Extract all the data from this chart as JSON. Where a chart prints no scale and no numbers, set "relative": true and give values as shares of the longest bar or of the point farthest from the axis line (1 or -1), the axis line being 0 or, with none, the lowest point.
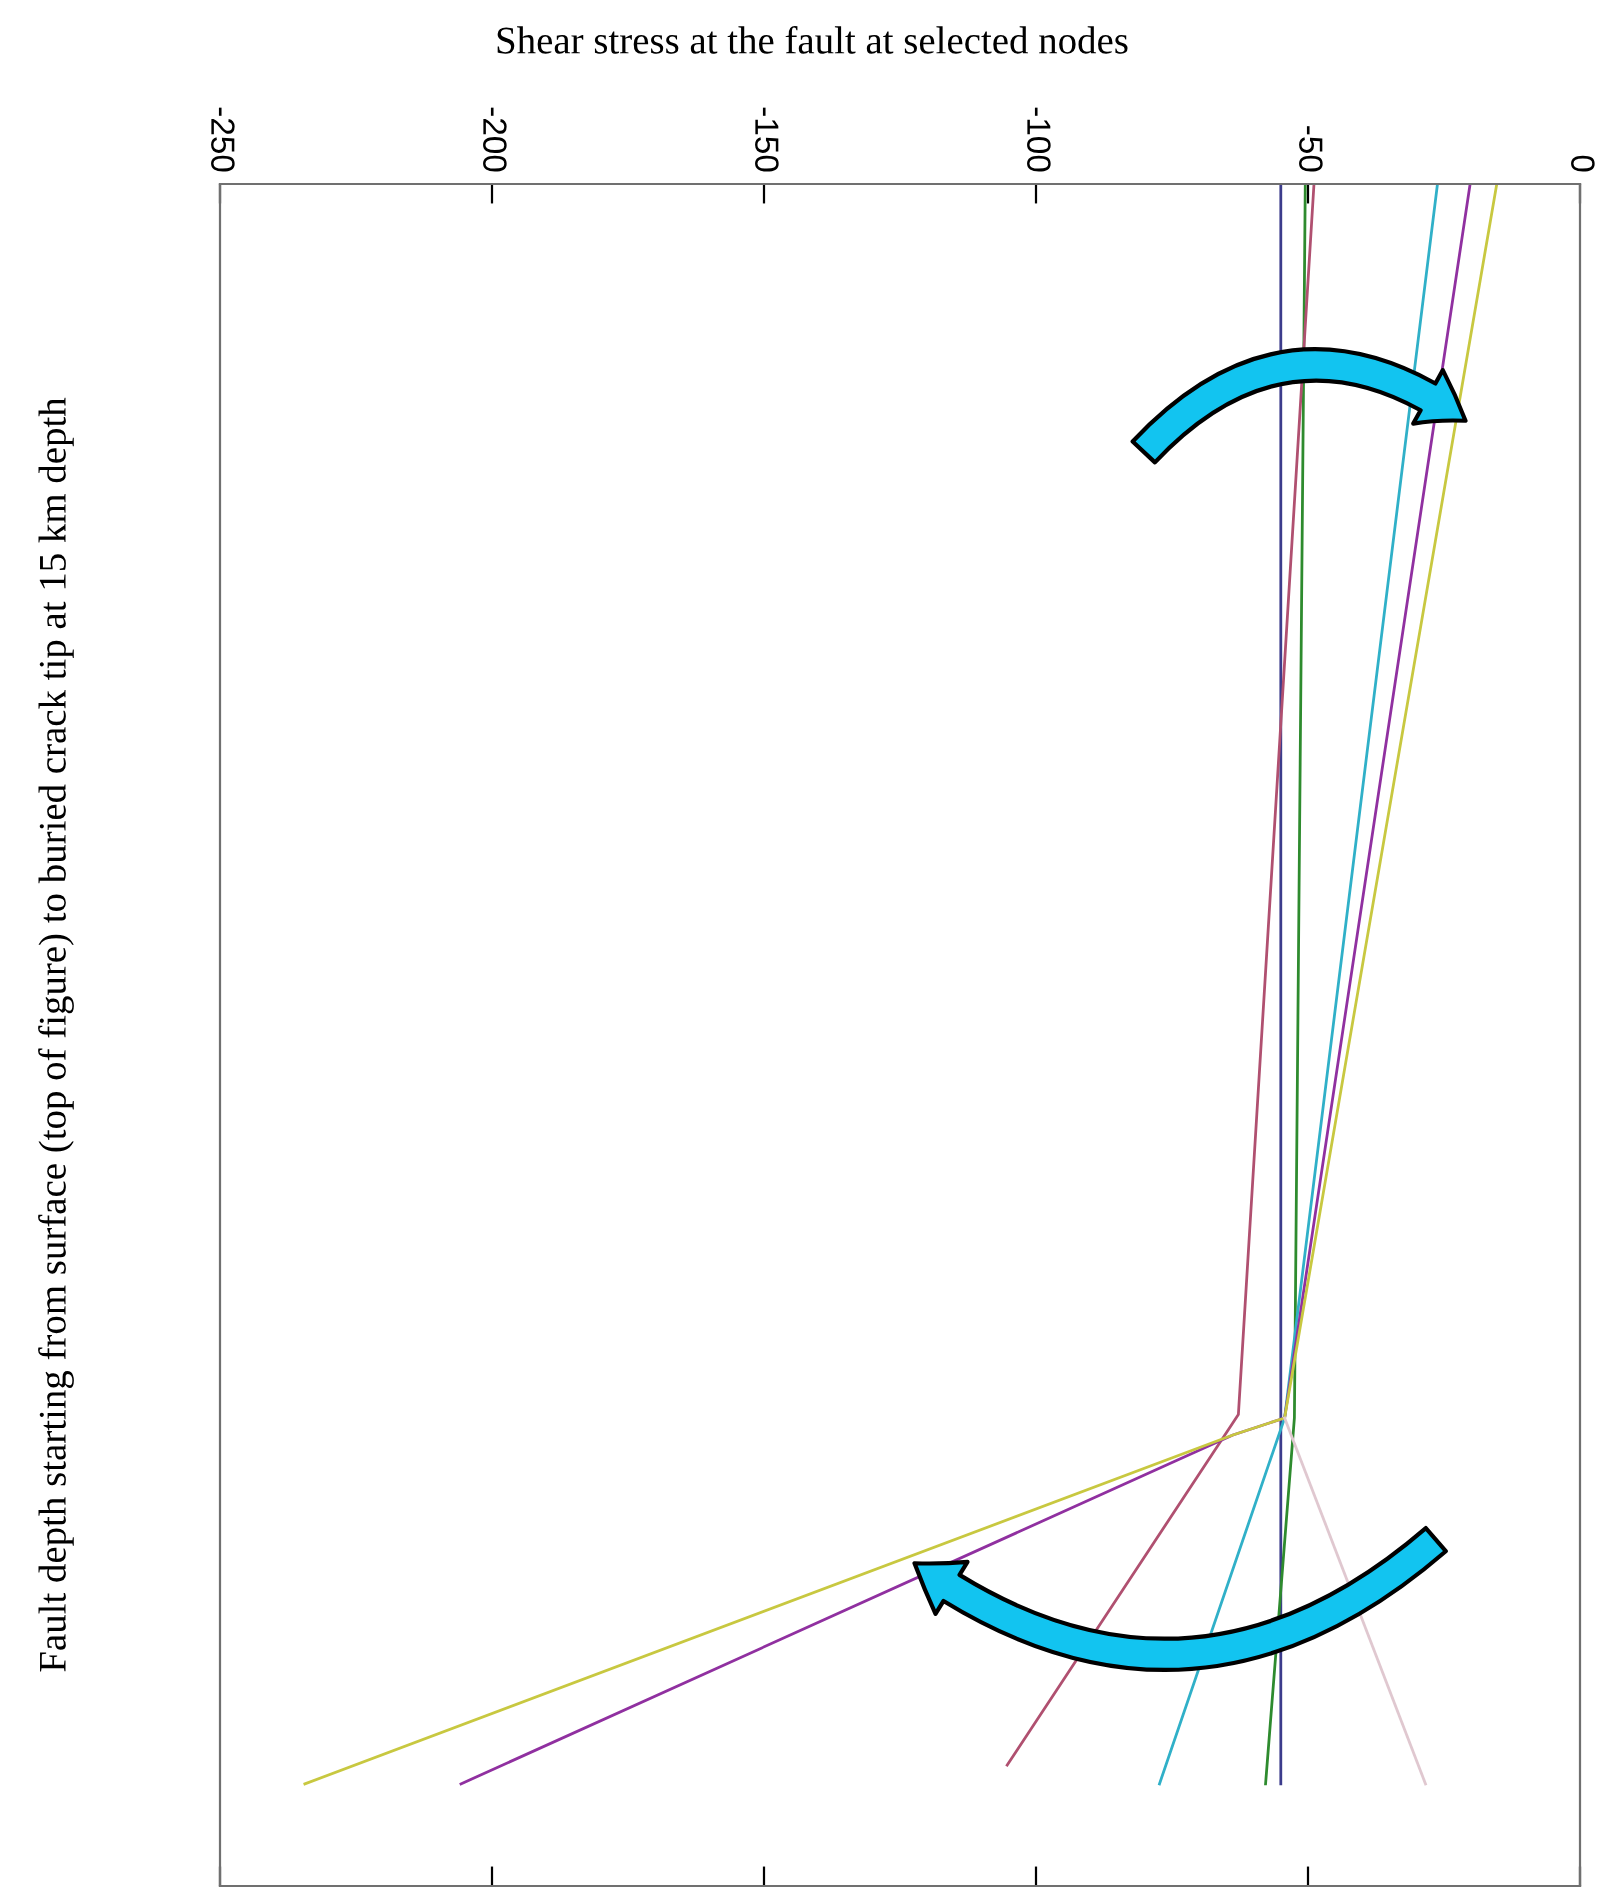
{
  "chart_data": {
    "type": "line",
    "title": "Shear stress at the fault at selected nodes",
    "ylabel": "Fault depth starting from surface (top of figure) to buried crack tip at 15 km depth",
    "series": [
      {
        "color": "#3c3c8c",
        "x": [
          -55,
          -55
        ],
        "values": [
          1,
          0.06
        ]
      },
      {
        "color": "#2e8b2e",
        "x": [
          -50.5,
          -52.5,
          -57.8
        ],
        "values": [
          1,
          0.275,
          0.06
        ]
      },
      {
        "color": "#b05070",
        "x": [
          -48.9,
          -62.8,
          -105.3
        ],
        "values": [
          1,
          0.277,
          0.071
        ]
      },
      {
        "color": "#30b0c8",
        "x": [
          -26.2,
          -54.3,
          -77.3
        ],
        "values": [
          1,
          0.275,
          0.06
        ]
      },
      {
        "color": "#9030a0",
        "x": [
          -20.2,
          -54.3,
          -63.8,
          -205.7
        ],
        "values": [
          1,
          0.275,
          0.265,
          0.06
        ]
      },
      {
        "color": "#c8c840",
        "x": [
          -15.3,
          -54.3,
          -63.8,
          -234.4
        ],
        "values": [
          1,
          0.275,
          0.265,
          0.06
        ]
      },
      {
        "color": "#e0c8d0",
        "x": [
          -54.3,
          -28.4
        ],
        "values": [
          0.275,
          0.06
        ]
      }
    ],
    "xlim": [
      -250,
      0
    ],
    "xticks": [
      -250,
      -200,
      -150,
      -100,
      -50,
      0
    ],
    "relative": true,
    "tick_labels": "x"
  }
}
